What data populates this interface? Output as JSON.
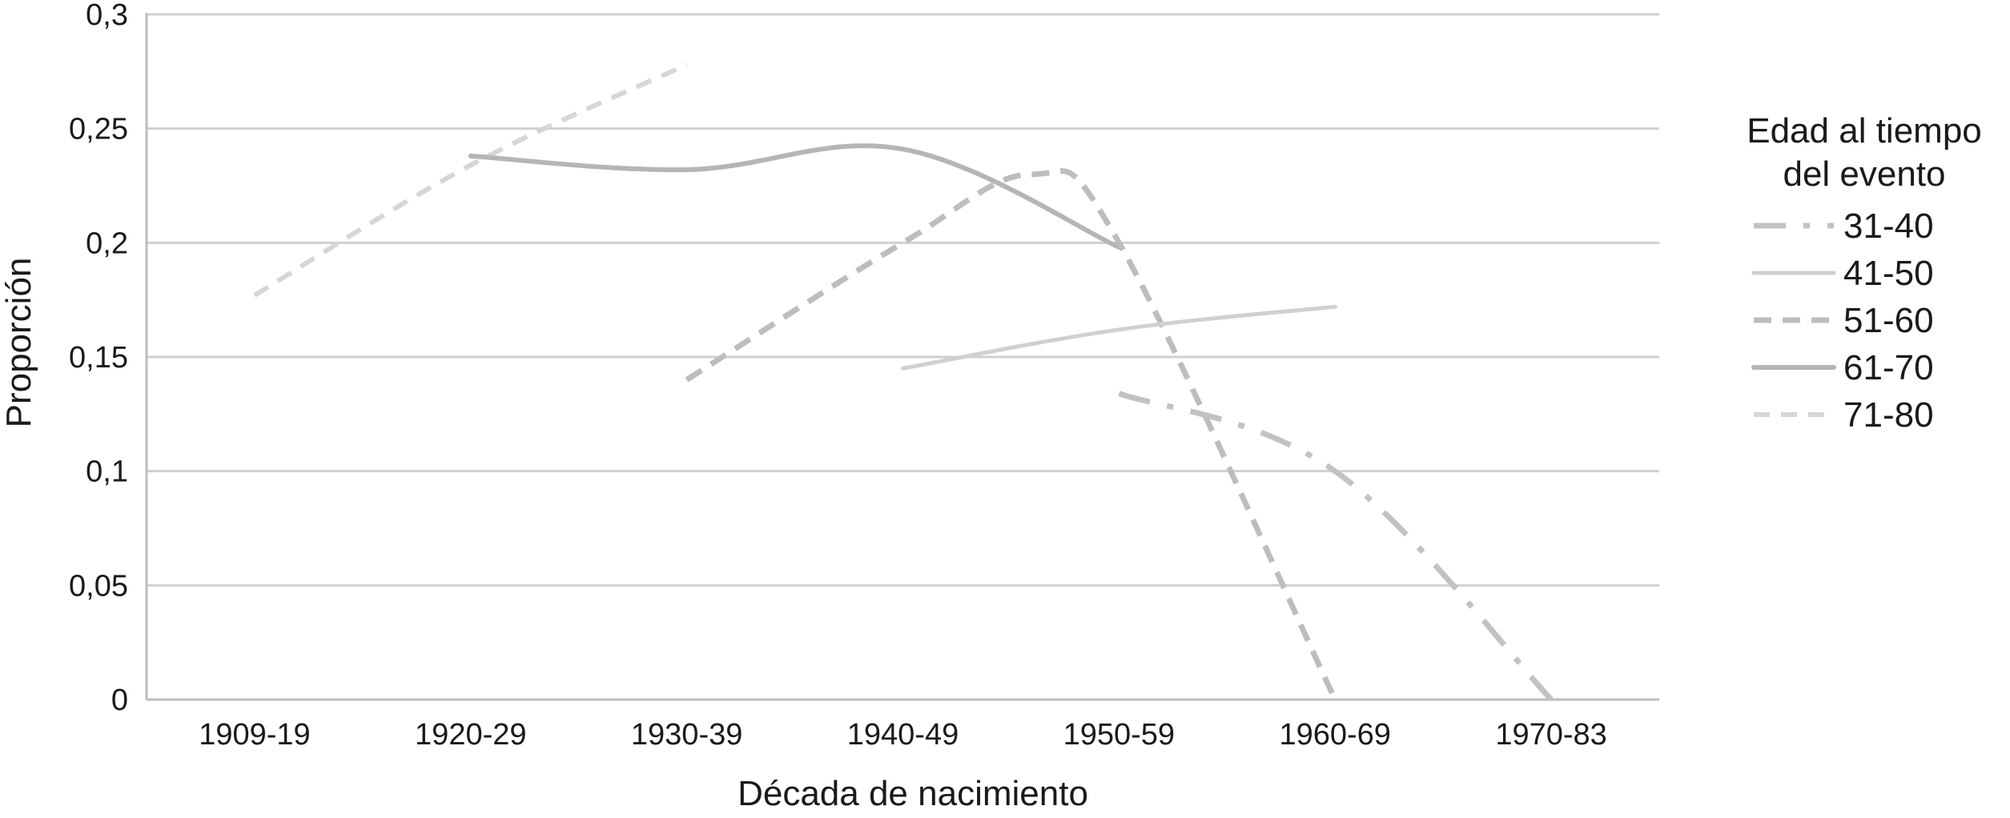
{
  "chart_data": {
    "type": "line",
    "title": "",
    "xlabel": "Década de nacimiento",
    "ylabel": "Proporción",
    "categories": [
      "1909-19",
      "1920-29",
      "1930-39",
      "1940-49",
      "1950-59",
      "1960-69",
      "1970-83"
    ],
    "y_ticks": [
      "0",
      "0,05",
      "0,1",
      "0,15",
      "0,2",
      "0,25",
      "0,3"
    ],
    "ylim": [
      0,
      0.3
    ],
    "grid": "horizontal",
    "legend": {
      "title_line1": "Edad al tiempo",
      "title_line2": "del evento",
      "position": "right"
    },
    "series": [
      {
        "name": "31-40",
        "style": "dashdot",
        "color": "#c2c2c2",
        "points": [
          [
            4,
            0.134
          ],
          [
            5,
            0.1
          ],
          [
            6,
            0.0
          ]
        ]
      },
      {
        "name": "41-50",
        "style": "solid-light",
        "color": "#d0d0d0",
        "points": [
          [
            3,
            0.145
          ],
          [
            4,
            0.162
          ],
          [
            5,
            0.172
          ]
        ]
      },
      {
        "name": "51-60",
        "style": "dash",
        "color": "#bdbdbd",
        "points": [
          [
            2,
            0.14
          ],
          [
            3,
            0.2
          ],
          [
            3.6,
            0.23
          ],
          [
            4,
            0.2
          ],
          [
            5,
            0.0
          ]
        ]
      },
      {
        "name": "61-70",
        "style": "solid",
        "color": "#b5b5b5",
        "points": [
          [
            1,
            0.238
          ],
          [
            2,
            0.232
          ],
          [
            3,
            0.241
          ],
          [
            4,
            0.198
          ]
        ]
      },
      {
        "name": "71-80",
        "style": "dash-light",
        "color": "#d6d6d6",
        "points": [
          [
            0,
            0.177
          ],
          [
            1,
            0.234
          ],
          [
            2,
            0.278
          ]
        ]
      }
    ]
  }
}
